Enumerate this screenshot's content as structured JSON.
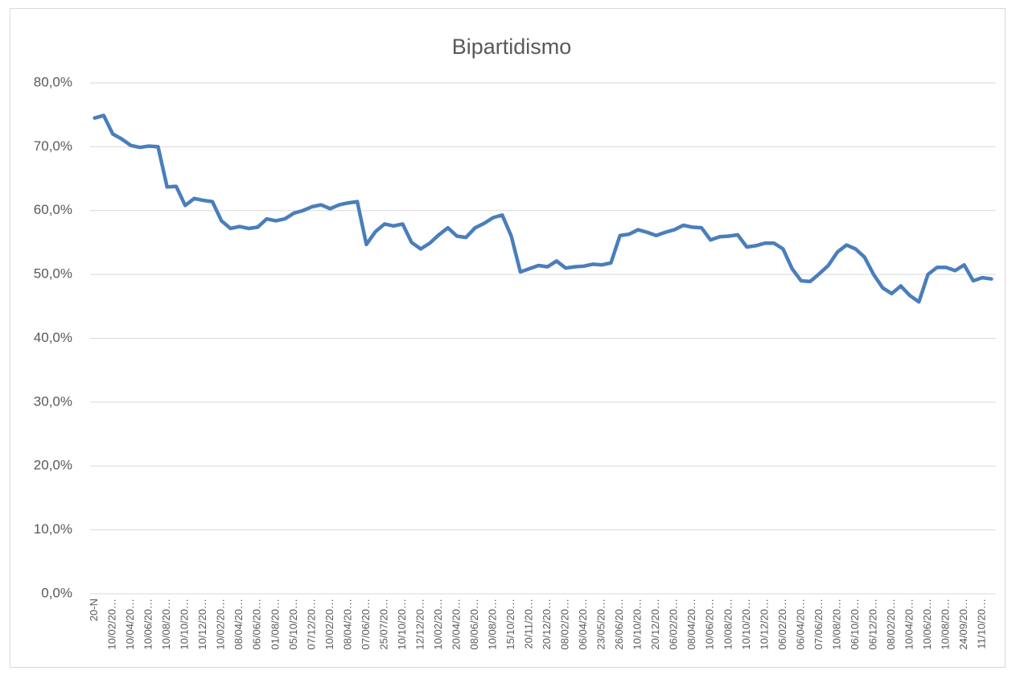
{
  "chart_data": {
    "type": "line",
    "title": "Bipartidismo",
    "categories": [
      "20-N",
      null,
      "10/02/20…",
      null,
      "10/04/20…",
      null,
      "10/06/20…",
      null,
      "10/08/20…",
      null,
      "10/10/20…",
      null,
      "10/12/20…",
      null,
      "10/02/20…",
      null,
      "08/04/20…",
      null,
      "06/06/20…",
      null,
      "01/08/20…",
      null,
      "05/10/20…",
      null,
      "07/12/20…",
      null,
      "10/02/20…",
      null,
      "08/04/20…",
      null,
      "07/06/20…",
      null,
      "25/07/20…",
      null,
      "10/10/20…",
      null,
      "12/12/20…",
      null,
      "10/02/20…",
      null,
      "20/04/20…",
      null,
      "08/06/20…",
      null,
      "10/08/20…",
      null,
      "15/10/20…",
      null,
      "20/11/20…",
      null,
      "20/12/20…",
      null,
      "08/02/20…",
      null,
      "06/04/20…",
      null,
      "23/05/20…",
      null,
      "26/06/20…",
      null,
      "10/10/20…",
      null,
      "20/12/20…",
      null,
      "06/02/20…",
      null,
      "08/04/20…",
      null,
      "10/06/20…",
      null,
      "10/08/20…",
      null,
      "10/10/20…",
      null,
      "10/12/20…",
      null,
      "06/02/20…",
      null,
      "06/04/20…",
      null,
      "07/06/20…",
      null,
      "10/08/20…",
      null,
      "06/10/20…",
      null,
      "06/12/20…",
      null,
      "08/02/20…",
      null,
      "10/04/20…",
      null,
      "10/06/20…",
      null,
      "10/08/20…",
      null,
      "24/09/20…",
      null,
      "11/10/20…",
      null
    ],
    "series": [
      {
        "name": "Bipartidismo",
        "color": "#4a7ebb",
        "values": [
          74.5,
          74.9,
          72.0,
          71.2,
          70.2,
          69.9,
          70.1,
          70.0,
          63.7,
          63.8,
          60.8,
          61.9,
          61.6,
          61.4,
          58.4,
          57.2,
          57.5,
          57.2,
          57.4,
          58.7,
          58.4,
          58.7,
          59.6,
          60.0,
          60.6,
          60.9,
          60.3,
          60.9,
          61.2,
          61.4,
          54.7,
          56.7,
          57.9,
          57.6,
          57.9,
          55.0,
          54.0,
          54.9,
          56.2,
          57.3,
          56.0,
          55.8,
          57.3,
          58.0,
          58.9,
          59.3,
          56.0,
          50.4,
          50.9,
          51.4,
          51.2,
          52.1,
          51.0,
          51.2,
          51.3,
          51.6,
          51.5,
          51.8,
          56.1,
          56.3,
          57.0,
          56.6,
          56.1,
          56.6,
          57.0,
          57.7,
          57.4,
          57.3,
          55.4,
          55.9,
          56.0,
          56.2,
          54.3,
          54.5,
          54.9,
          54.9,
          54.0,
          50.9,
          49.0,
          48.9,
          50.1,
          51.4,
          53.5,
          54.6,
          54.0,
          52.7,
          50.0,
          47.9,
          47.0,
          48.2,
          46.7,
          45.7,
          50.0,
          51.1,
          51.1,
          50.6,
          51.5,
          49.0,
          49.5,
          49.3
        ]
      }
    ],
    "ylim": [
      0,
      80
    ],
    "yticks": [
      {
        "value": 0,
        "label": "0,0%"
      },
      {
        "value": 10,
        "label": "10,0%"
      },
      {
        "value": 20,
        "label": "20,0%"
      },
      {
        "value": 30,
        "label": "30,0%"
      },
      {
        "value": 40,
        "label": "40,0%"
      },
      {
        "value": 50,
        "label": "50,0%"
      },
      {
        "value": 60,
        "label": "60,0%"
      },
      {
        "value": 70,
        "label": "70,0%"
      },
      {
        "value": 80,
        "label": "80,0%"
      }
    ],
    "grid": true
  }
}
